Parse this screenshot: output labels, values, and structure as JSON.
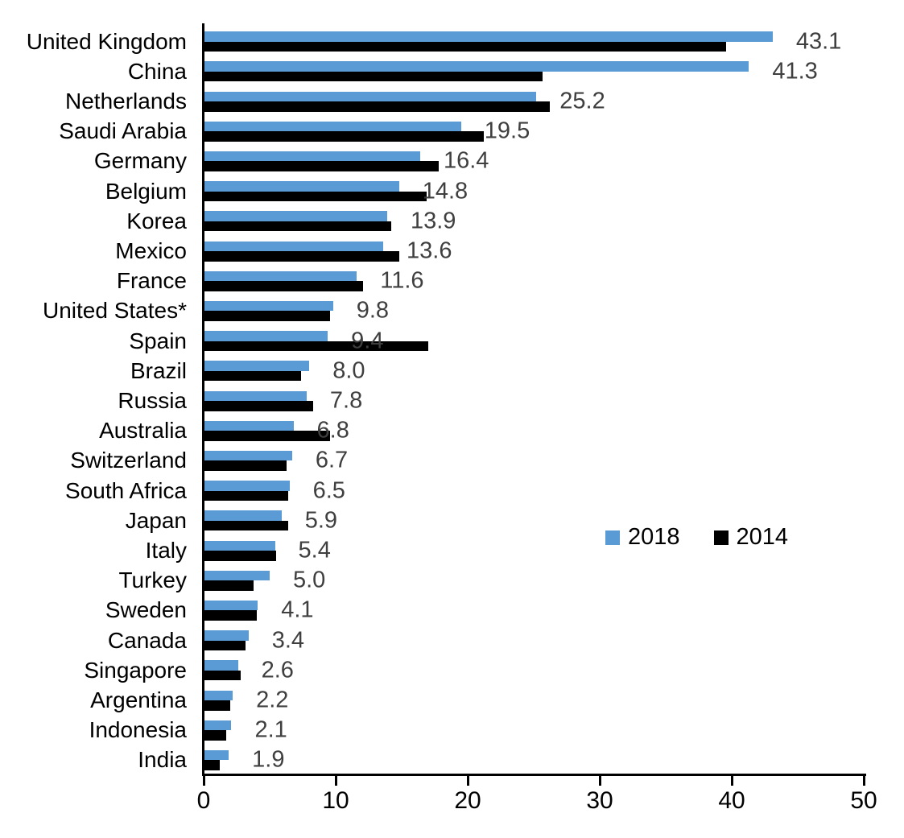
{
  "chart_data": {
    "type": "bar",
    "orientation": "horizontal",
    "title": "",
    "categories": [
      "United Kingdom",
      "China",
      "Netherlands",
      "Saudi Arabia",
      "Germany",
      "Belgium",
      "Korea",
      "Mexico",
      "France",
      "United States*",
      "Spain",
      "Brazil",
      "Russia",
      "Australia",
      "Switzerland",
      "South Africa",
      "Japan",
      "Italy",
      "Turkey",
      "Sweden",
      "Canada",
      "Singapore",
      "Argentina",
      "Indonesia",
      "India"
    ],
    "series": [
      {
        "name": "2018",
        "color": "#5B9BD5",
        "values": [
          43.1,
          41.3,
          25.2,
          19.5,
          16.4,
          14.8,
          13.9,
          13.6,
          11.6,
          9.8,
          9.4,
          8.0,
          7.8,
          6.8,
          6.7,
          6.5,
          5.9,
          5.4,
          5.0,
          4.1,
          3.4,
          2.6,
          2.2,
          2.1,
          1.9
        ],
        "value_labels": [
          "43.1",
          "41.3",
          "25.2",
          "19.5",
          "16.4",
          "14.8",
          "13.9",
          "13.6",
          "11.6",
          "9.8",
          "9.4",
          "8.0",
          "7.8",
          "6.8",
          "6.7",
          "6.5",
          "5.9",
          "5.4",
          "5.0",
          "4.1",
          "3.4",
          "2.6",
          "2.2",
          "2.1",
          "1.9"
        ]
      },
      {
        "name": "2014",
        "color": "#000000",
        "values": [
          39.6,
          25.7,
          26.2,
          21.2,
          17.8,
          16.9,
          14.2,
          14.8,
          12.1,
          9.6,
          17.0,
          7.4,
          8.3,
          9.6,
          6.3,
          6.4,
          6.4,
          5.5,
          3.8,
          4.0,
          3.2,
          2.8,
          2.0,
          1.7,
          1.2
        ]
      }
    ],
    "value_label_color": "#3F3F3F",
    "axis_color": "#000000",
    "xlim": [
      0,
      50
    ],
    "x_ticks": [
      "0",
      "10",
      "20",
      "30",
      "40",
      "50"
    ],
    "grid": false,
    "legend": {
      "position": "middle-right",
      "entries": [
        {
          "label": "2018",
          "color": "#5B9BD5"
        },
        {
          "label": "2014",
          "color": "#000000"
        }
      ]
    }
  }
}
